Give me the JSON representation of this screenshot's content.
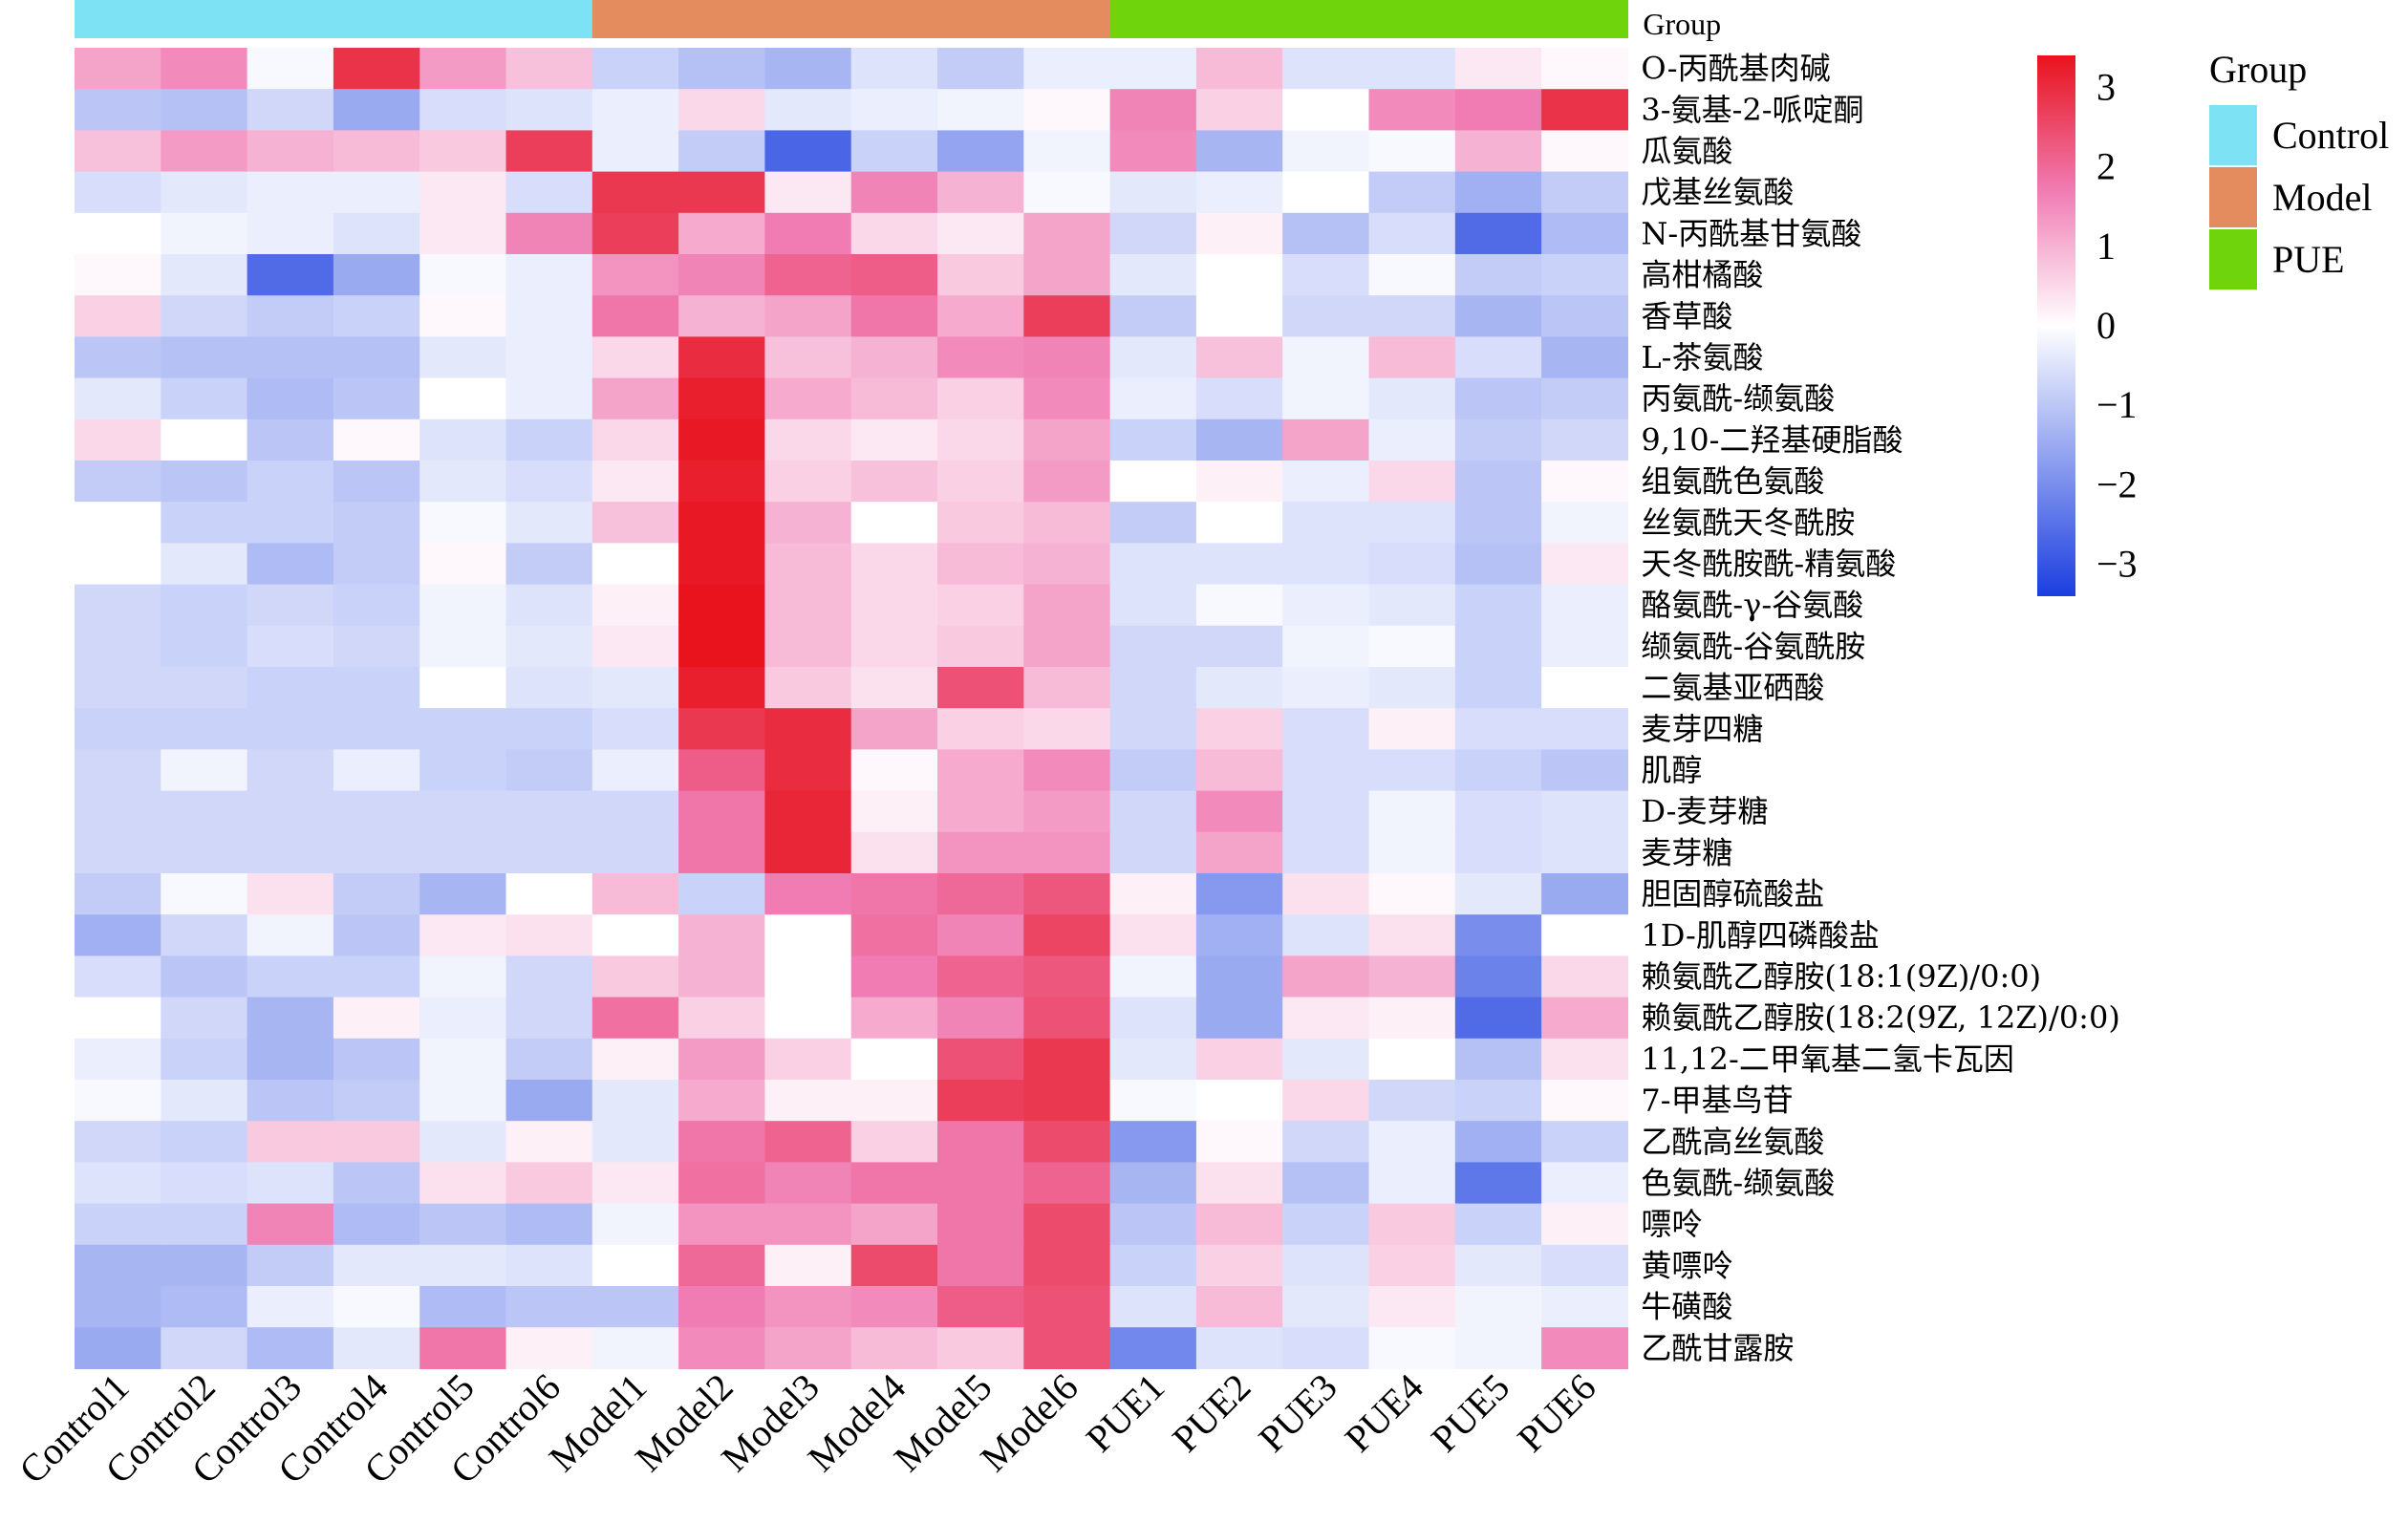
{
  "chart_data": {
    "type": "heatmap",
    "title": "",
    "columns": [
      "Control1",
      "Control2",
      "Control3",
      "Control4",
      "Control5",
      "Control6",
      "Model1",
      "Model2",
      "Model3",
      "Model4",
      "Model5",
      "Model6",
      "PUE1",
      "PUE2",
      "PUE3",
      "PUE4",
      "PUE5",
      "PUE6"
    ],
    "column_groups": [
      "Control",
      "Control",
      "Control",
      "Control",
      "Control",
      "Control",
      "Model",
      "Model",
      "Model",
      "Model",
      "Model",
      "Model",
      "PUE",
      "PUE",
      "PUE",
      "PUE",
      "PUE",
      "PUE"
    ],
    "annotation_label": "Group",
    "rows": [
      "O-丙酰基肉碱",
      "3-氨基-2-哌啶酮",
      "瓜氨酸",
      "戊基丝氨酸",
      "N-丙酰基甘氨酸",
      "高柑橘酸",
      "香草酸",
      "L-茶氨酸",
      "丙氨酰-缬氨酸",
      "9,10-二羟基硬脂酸",
      "组氨酰色氨酸",
      "丝氨酰天冬酰胺",
      "天冬酰胺酰-精氨酸",
      "酪氨酰-γ-谷氨酸",
      "缬氨酰-谷氨酰胺",
      "二氨基亚硒酸",
      "麦芽四糖",
      "肌醇",
      "D-麦芽糖",
      "麦芽糖",
      "胆固醇硫酸盐",
      "1D-肌醇四磷酸盐",
      "赖氨酰乙醇胺(18:1(9Z)/0:0)",
      "赖氨酰乙醇胺(18:2(9Z, 12Z)/0:0)",
      "11,12-二甲氧基二氢卡瓦因",
      "7-甲基鸟苷",
      "乙酰高丝氨酸",
      "色氨酰-缬氨酸",
      "嘌呤",
      "黄嘌呤",
      "牛磺酸",
      "乙酰甘露胺"
    ],
    "values": [
      [
        1.2,
        1.5,
        -0.1,
        2.9,
        1.3,
        0.8,
        -0.8,
        -1.1,
        -1.3,
        -0.5,
        -0.9,
        -0.3,
        -0.3,
        0.9,
        -0.5,
        -0.5,
        0.3,
        0.1
      ],
      [
        -1.0,
        -1.1,
        -0.7,
        -1.5,
        -0.6,
        -0.5,
        -0.3,
        0.5,
        -0.4,
        -0.3,
        -0.2,
        0.1,
        1.6,
        0.6,
        0.0,
        1.5,
        1.7,
        2.9
      ],
      [
        0.8,
        1.3,
        1.0,
        0.9,
        0.7,
        2.7,
        -0.3,
        -0.9,
        -2.7,
        -0.8,
        -1.6,
        -0.2,
        1.5,
        -1.3,
        -0.2,
        -0.1,
        1.0,
        0.1
      ],
      [
        -0.6,
        -0.4,
        -0.3,
        -0.3,
        0.3,
        -0.6,
        2.8,
        2.8,
        0.3,
        1.6,
        1.0,
        -0.1,
        -0.4,
        -0.3,
        0.0,
        -0.9,
        -1.4,
        -0.9
      ],
      [
        0.0,
        -0.2,
        -0.3,
        -0.5,
        0.3,
        1.6,
        2.7,
        1.1,
        1.7,
        0.5,
        0.3,
        1.2,
        -0.7,
        0.2,
        -1.1,
        -0.6,
        -2.6,
        -1.2
      ],
      [
        0.1,
        -0.4,
        -2.6,
        -1.5,
        -0.1,
        -0.3,
        1.4,
        1.6,
        2.1,
        2.2,
        0.7,
        1.2,
        -0.4,
        0.0,
        -0.6,
        -0.1,
        -0.9,
        -0.8
      ],
      [
        0.6,
        -0.7,
        -0.9,
        -0.8,
        0.1,
        -0.3,
        1.8,
        1.0,
        1.2,
        1.8,
        1.1,
        2.7,
        -0.9,
        0.0,
        -0.7,
        -0.7,
        -1.3,
        -1.0
      ],
      [
        -1.0,
        -1.1,
        -1.1,
        -1.1,
        -0.4,
        -0.3,
        0.5,
        3.0,
        0.8,
        1.0,
        1.5,
        1.6,
        -0.4,
        0.8,
        -0.2,
        0.9,
        -0.6,
        -1.3
      ],
      [
        -0.4,
        -0.8,
        -1.2,
        -1.0,
        0.0,
        -0.3,
        1.2,
        3.2,
        1.1,
        0.9,
        0.6,
        1.5,
        -0.3,
        -0.6,
        -0.2,
        -0.4,
        -1.0,
        -0.9
      ],
      [
        0.5,
        0.0,
        -1.0,
        0.1,
        -0.5,
        -0.8,
        0.5,
        3.3,
        0.5,
        0.3,
        0.5,
        1.2,
        -0.8,
        -1.3,
        1.2,
        -0.3,
        -0.9,
        -0.7
      ],
      [
        -0.9,
        -1.0,
        -0.8,
        -1.0,
        -0.4,
        -0.6,
        0.3,
        3.2,
        0.6,
        0.8,
        0.6,
        1.3,
        0.0,
        0.2,
        -0.3,
        0.5,
        -1.0,
        0.1
      ],
      [
        0.0,
        -0.8,
        -0.8,
        -0.9,
        -0.1,
        -0.4,
        0.8,
        3.3,
        1.0,
        0.0,
        0.7,
        0.9,
        -0.9,
        0.0,
        -0.5,
        -0.5,
        -1.0,
        -0.2
      ],
      [
        0.0,
        -0.4,
        -1.2,
        -0.9,
        0.1,
        -0.9,
        0.0,
        3.3,
        0.9,
        0.5,
        0.9,
        1.0,
        -0.5,
        -0.5,
        -0.5,
        -0.6,
        -1.1,
        0.3
      ],
      [
        -0.7,
        -0.8,
        -0.7,
        -0.8,
        -0.2,
        -0.5,
        0.2,
        3.4,
        0.9,
        0.5,
        0.6,
        1.2,
        -0.5,
        -0.1,
        -0.3,
        -0.4,
        -0.8,
        -0.3
      ],
      [
        -0.7,
        -0.8,
        -0.6,
        -0.7,
        -0.2,
        -0.4,
        0.3,
        3.4,
        0.9,
        0.5,
        0.7,
        1.2,
        -0.7,
        -0.7,
        -0.2,
        -0.1,
        -0.8,
        -0.3
      ],
      [
        -0.7,
        -0.7,
        -0.8,
        -0.8,
        0.0,
        -0.5,
        -0.4,
        3.2,
        0.7,
        0.4,
        2.4,
        0.9,
        -0.7,
        -0.4,
        -0.3,
        -0.4,
        -0.8,
        0.0
      ],
      [
        -0.8,
        -0.8,
        -0.8,
        -0.8,
        -0.8,
        -0.8,
        -0.6,
        2.8,
        3.0,
        1.2,
        0.6,
        0.5,
        -0.7,
        0.6,
        -0.6,
        0.2,
        -0.6,
        -0.6
      ],
      [
        -0.7,
        -0.2,
        -0.7,
        -0.3,
        -0.8,
        -0.9,
        -0.3,
        2.2,
        3.0,
        0.1,
        1.1,
        1.5,
        -0.9,
        0.9,
        -0.6,
        -0.6,
        -0.8,
        -1.0
      ],
      [
        -0.7,
        -0.7,
        -0.7,
        -0.7,
        -0.7,
        -0.7,
        -0.7,
        1.8,
        3.1,
        0.2,
        1.1,
        1.3,
        -0.7,
        1.5,
        -0.6,
        -0.2,
        -0.6,
        -0.5
      ],
      [
        -0.7,
        -0.7,
        -0.7,
        -0.7,
        -0.7,
        -0.7,
        -0.7,
        1.8,
        3.1,
        0.4,
        1.4,
        1.4,
        -0.7,
        1.2,
        -0.6,
        -0.2,
        -0.6,
        -0.5
      ],
      [
        -0.9,
        -0.1,
        0.4,
        -0.9,
        -1.3,
        0.0,
        0.9,
        -0.8,
        1.7,
        1.8,
        2.0,
        2.3,
        0.2,
        -1.8,
        0.4,
        0.1,
        -0.4,
        -1.5
      ],
      [
        -1.4,
        -0.7,
        -0.2,
        -1.0,
        0.3,
        0.4,
        0.0,
        1.0,
        0.0,
        1.9,
        1.6,
        2.6,
        0.4,
        -1.4,
        -0.5,
        0.4,
        -2.0,
        0.0
      ],
      [
        -0.6,
        -1.0,
        -0.8,
        -0.8,
        -0.2,
        -0.7,
        0.7,
        1.0,
        0.0,
        1.7,
        2.1,
        2.3,
        -0.2,
        -1.5,
        1.2,
        1.0,
        -2.2,
        0.5
      ],
      [
        0.0,
        -0.7,
        -1.3,
        0.2,
        -0.3,
        -0.7,
        1.9,
        0.6,
        0.0,
        1.1,
        1.6,
        2.4,
        -0.5,
        -1.5,
        0.3,
        0.2,
        -2.6,
        1.1
      ],
      [
        -0.3,
        -0.8,
        -1.3,
        -1.0,
        -0.2,
        -0.9,
        0.2,
        1.3,
        0.6,
        0.0,
        2.4,
        2.8,
        -0.4,
        0.6,
        -0.4,
        0.0,
        -1.1,
        0.4
      ],
      [
        -0.1,
        -0.4,
        -1.0,
        -0.9,
        -0.2,
        -1.5,
        -0.4,
        1.1,
        0.2,
        0.2,
        2.7,
        2.8,
        -0.1,
        0.0,
        0.5,
        -0.7,
        -0.8,
        0.1
      ],
      [
        -0.7,
        -0.8,
        0.7,
        0.7,
        -0.4,
        0.2,
        -0.4,
        1.8,
        2.1,
        0.6,
        1.8,
        2.5,
        -1.8,
        0.1,
        -0.7,
        -0.3,
        -1.4,
        -0.8
      ],
      [
        -0.5,
        -0.6,
        -0.5,
        -1.0,
        0.4,
        0.7,
        0.3,
        1.9,
        1.6,
        1.8,
        1.8,
        2.1,
        -1.3,
        0.4,
        -1.1,
        -0.3,
        -2.4,
        -0.3
      ],
      [
        -0.8,
        -0.8,
        1.6,
        -1.2,
        -1.0,
        -1.2,
        -0.2,
        1.4,
        1.4,
        1.2,
        1.8,
        2.5,
        -1.0,
        0.9,
        -0.8,
        0.7,
        -0.8,
        0.2
      ],
      [
        -1.3,
        -1.3,
        -0.9,
        -0.4,
        -0.4,
        -0.5,
        0.0,
        2.0,
        0.2,
        2.5,
        1.8,
        2.5,
        -0.8,
        0.6,
        -0.5,
        0.6,
        -0.4,
        -0.6
      ],
      [
        -1.3,
        -1.2,
        -0.3,
        -0.1,
        -1.2,
        -1.0,
        -1.0,
        1.7,
        1.4,
        1.5,
        2.2,
        2.4,
        -0.5,
        0.9,
        -0.4,
        0.3,
        -0.2,
        -0.3
      ],
      [
        -1.5,
        -0.7,
        -1.2,
        -0.4,
        1.8,
        0.2,
        -0.2,
        1.5,
        1.2,
        0.9,
        0.7,
        2.4,
        -2.1,
        -0.5,
        -0.6,
        -0.1,
        -0.2,
        1.5
      ]
    ],
    "color_scale": {
      "min": -3.4,
      "max": 3.4,
      "stops": [
        {
          "value": -3.4,
          "color": "#1b3ee0"
        },
        {
          "value": 0,
          "color": "#ffffff"
        },
        {
          "value": 1.7,
          "color": "#f07cb3"
        },
        {
          "value": 3.4,
          "color": "#e8131c"
        }
      ],
      "ticks": [
        3,
        2,
        1,
        0,
        -1,
        -2,
        -3
      ],
      "tick_labels": [
        "3",
        "2",
        "1",
        "0",
        "−1",
        "−2",
        "−3"
      ]
    },
    "legend": {
      "title": "Group",
      "items": [
        {
          "name": "Control",
          "color": "#7de3f4"
        },
        {
          "name": "Model",
          "color": "#e58c5e"
        },
        {
          "name": "PUE",
          "color": "#70d40d"
        }
      ]
    }
  }
}
